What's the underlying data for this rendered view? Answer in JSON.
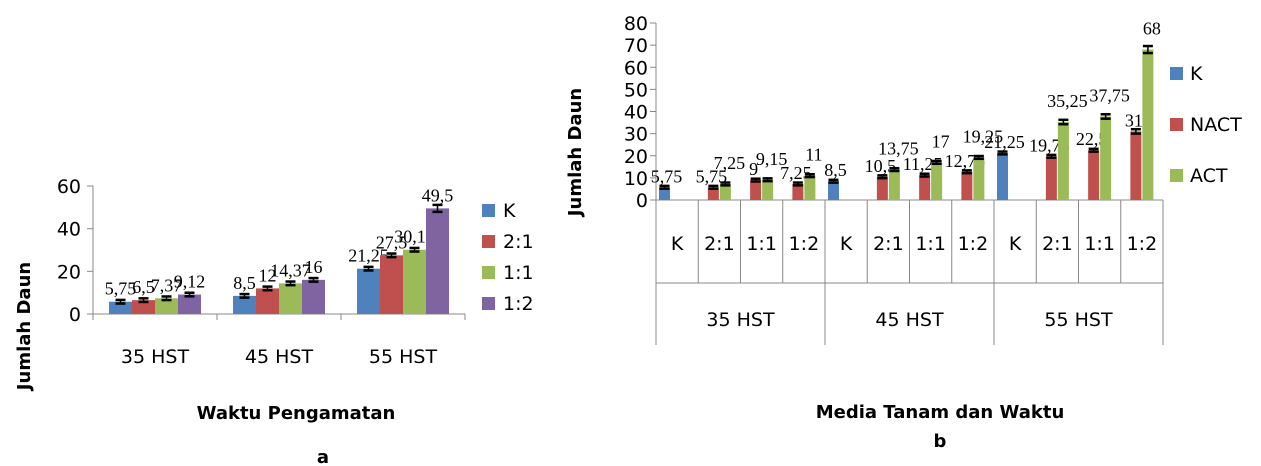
{
  "chart_data": [
    {
      "id": "a",
      "panel_label": "a",
      "type": "bar",
      "categories": [
        "35 HST",
        "45 HST",
        "55 HST"
      ],
      "series": [
        {
          "name": "K",
          "color": "#4F81BD",
          "values": [
            5.75,
            8.5,
            21.25
          ],
          "labels": [
            "5,75",
            "8,5",
            "21,25"
          ]
        },
        {
          "name": "2:1",
          "color": "#C0504D",
          "values": [
            6.5,
            12,
            27.5
          ],
          "labels": [
            "6,5",
            "12",
            "27,5"
          ]
        },
        {
          "name": "1:1",
          "color": "#9BBB59",
          "values": [
            7.37,
            14.37,
            30.12
          ],
          "labels": [
            "7,37",
            "14,37",
            "30,12"
          ]
        },
        {
          "name": "1:2",
          "color": "#8064A2",
          "values": [
            9.12,
            16,
            49.5
          ],
          "labels": [
            "9,12",
            "16",
            "49,5"
          ]
        }
      ],
      "xlabel": "Waktu Pengamatan",
      "ylabel": "Jumlah Daun",
      "ylim": [
        0,
        60
      ],
      "yticks": [
        "0",
        "20",
        "40",
        "60"
      ],
      "legend": "right",
      "error_bars": true,
      "grid": false
    },
    {
      "id": "b",
      "panel_label": "b",
      "type": "bar",
      "groups": [
        {
          "label": "35 HST",
          "subcategories": [
            "K",
            "2:1",
            "1:1",
            "1:2"
          ]
        },
        {
          "label": "45 HST",
          "subcategories": [
            "K",
            "2:1",
            "1:1",
            "1:2"
          ]
        },
        {
          "label": "55 HST",
          "subcategories": [
            "K",
            "2:1",
            "1:1",
            "1:2"
          ]
        }
      ],
      "series": [
        {
          "name": "K",
          "color": "#4F81BD",
          "values": [
            5.75,
            null,
            null,
            null,
            8.5,
            null,
            null,
            null,
            21.25,
            null,
            null,
            null
          ],
          "labels": [
            "5,75",
            "",
            "",
            "",
            "8,5",
            "",
            "",
            "",
            "21,25",
            "",
            "",
            ""
          ]
        },
        {
          "name": "NACT",
          "color": "#C0504D",
          "values": [
            null,
            5.75,
            9,
            7.25,
            null,
            10.5,
            11.25,
            12.75,
            null,
            19.75,
            22.5,
            31
          ],
          "labels": [
            "",
            "5,75",
            "9",
            "7,25",
            "",
            "10,5",
            "11,25",
            "12,75",
            "",
            "19,75",
            "22,5",
            "31"
          ]
        },
        {
          "name": "ACT",
          "color": "#9BBB59",
          "values": [
            null,
            7.25,
            9.15,
            11,
            null,
            13.75,
            17,
            19.25,
            null,
            35.25,
            37.75,
            68
          ],
          "labels": [
            "",
            "7,25",
            "9,15",
            "11",
            "",
            "13,75",
            "17",
            "19,25",
            "",
            "35,25",
            "37,75",
            "68"
          ]
        }
      ],
      "xlabel": "Media Tanam dan Waktu",
      "ylabel": "Jumlah Daun",
      "ylim": [
        0,
        80
      ],
      "yticks": [
        "0",
        "10",
        "20",
        "30",
        "40",
        "50",
        "60",
        "70",
        "80"
      ],
      "legend": "right",
      "error_bars": true,
      "grid": false
    }
  ]
}
